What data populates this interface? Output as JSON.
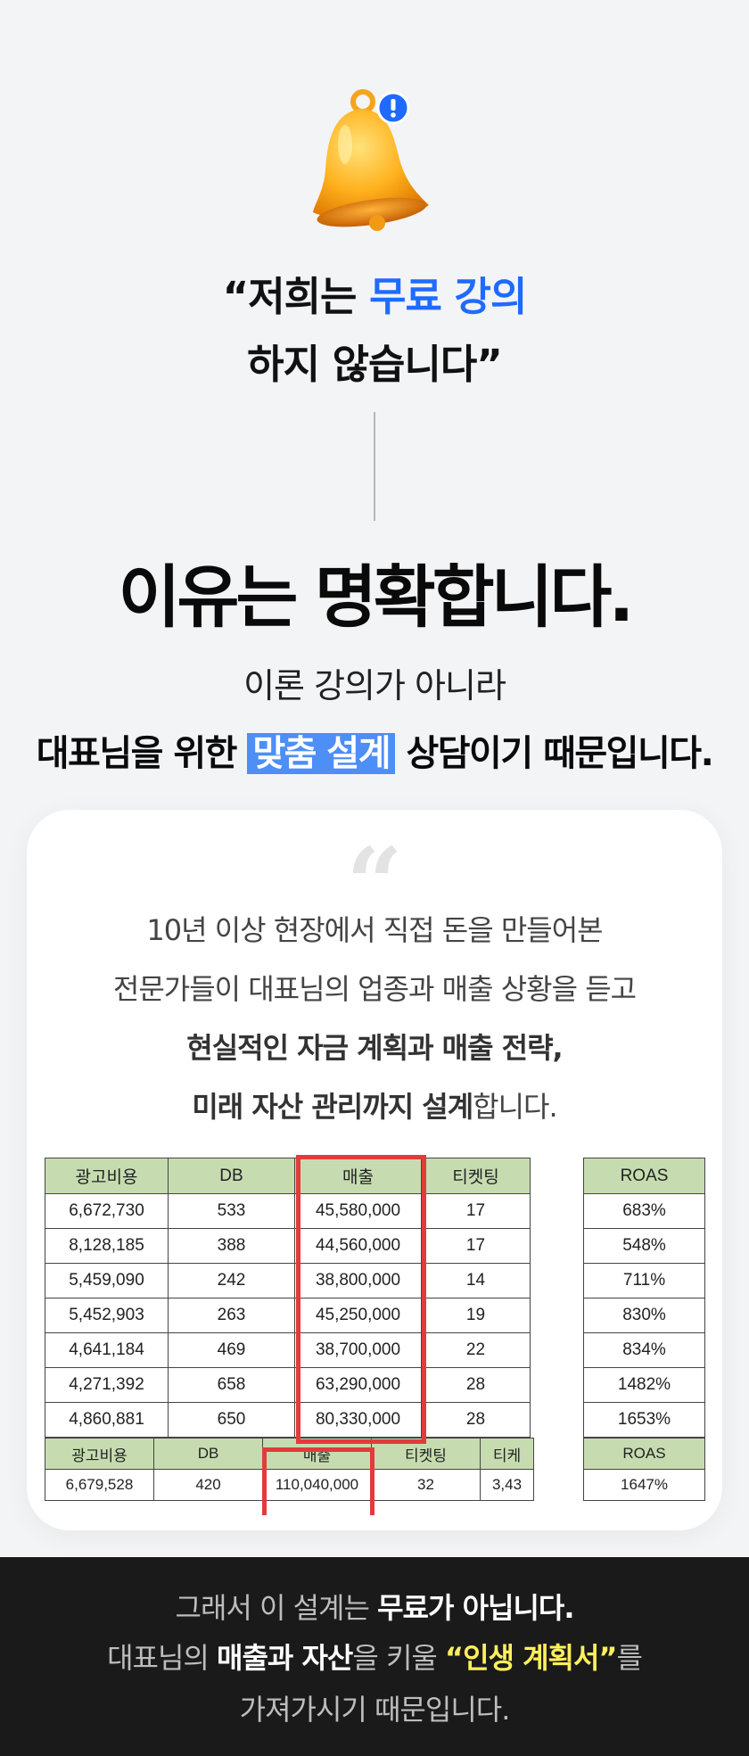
{
  "header": {
    "quote_line1_a": "“저희는 ",
    "quote_line1_b": "무료 강의",
    "quote_line2": "하지 않습니다”"
  },
  "headline": "이유는 명확합니다.",
  "subline1": "이론 강의가 아니라",
  "subline2_a": "대표님을 위한 ",
  "subline2_hl": "맞춤 설계",
  "subline2_b": " 상담이기 때문입니다.",
  "card": {
    "quote_mark": "“",
    "line1": "10년 이상 현장에서 직접 돈을 만들어본",
    "line2": "전문가들이 대표님의 업종과 매출 상황을 듣고",
    "line3": "현실적인 자금 계획과 매출 전략,",
    "line4_bold": "미래 자산 관리까지 설계",
    "line4_rest": "합니다."
  },
  "table1": {
    "headers": [
      "광고비용",
      "DB",
      "매출",
      "티켓팅",
      "",
      "ROAS"
    ],
    "rows": [
      [
        "6,672,730",
        "533",
        "45,580,000",
        "17",
        "",
        "683%"
      ],
      [
        "8,128,185",
        "388",
        "44,560,000",
        "17",
        "",
        "548%"
      ],
      [
        "5,459,090",
        "242",
        "38,800,000",
        "14",
        "",
        "711%"
      ],
      [
        "5,452,903",
        "263",
        "45,250,000",
        "19",
        "",
        "830%"
      ],
      [
        "4,641,184",
        "469",
        "38,700,000",
        "22",
        "",
        "834%"
      ],
      [
        "4,271,392",
        "658",
        "63,290,000",
        "28",
        "",
        "1482%"
      ],
      [
        "4,860,881",
        "650",
        "80,330,000",
        "28",
        "",
        "1653%"
      ]
    ]
  },
  "table2": {
    "headers": [
      "광고비용",
      "DB",
      "매출",
      "티켓팅",
      "티케",
      "",
      "ROAS"
    ],
    "rows": [
      [
        "6,679,528",
        "420",
        "110,040,000",
        "32",
        "3,43",
        "",
        "1647%"
      ]
    ]
  },
  "footer": {
    "line1_a": "그래서 이 설계는 ",
    "line1_b": "무료가 아닙니다.",
    "line2_a": "대표님의 ",
    "line2_b": "매출과 자산",
    "line2_c": "을 키울 ",
    "line2_d": "“인생 계획서”",
    "line2_e": "를",
    "line3": "가져가시기 때문입니다."
  },
  "colors": {
    "accent_blue": "#1f6bff",
    "highlight_blue": "#4d8ef7",
    "highlight_red": "#e23b3b",
    "table_header_green": "#c6dcb0",
    "footer_yellow": "#fff05a"
  },
  "icons": {
    "bell": "bell-icon",
    "alert_badge": "exclamation-badge-icon"
  }
}
